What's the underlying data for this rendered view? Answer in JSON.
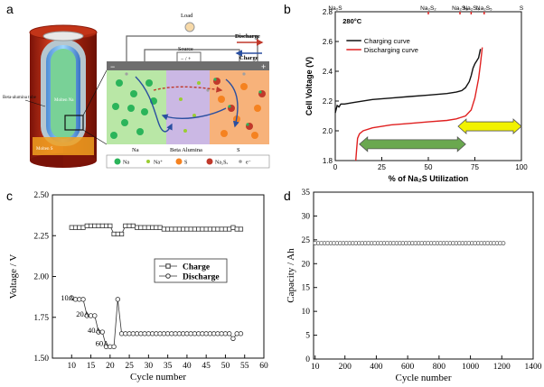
{
  "panel_labels": {
    "a": "a",
    "b": "b",
    "c": "c",
    "d": "d"
  },
  "schematic": {
    "load": "Load",
    "source": "Source",
    "source_sign": "− / +",
    "discharge": "Discharge",
    "charge": "Charge",
    "neg_sign": "−",
    "pos_sign": "+",
    "tube_label": "Beta-alumina tube",
    "molten_na": "Molten Na",
    "molten_s": "Molten S",
    "region_na": "Na",
    "region_beta": "Beta Alumina",
    "region_s": "S",
    "legend": [
      "Na",
      "Na⁺",
      "S",
      "Na₂Sₓ",
      "e⁻"
    ],
    "colors": {
      "na": "#2bb45a",
      "na_ion": "#9acd32",
      "s": "#f58220",
      "na2sx": "#c0392b",
      "electron": "#a0a0a0",
      "na_region": "#b9e7a6",
      "beta_region": "#cbb8e4",
      "s_region": "#f7b27a"
    }
  },
  "chart_data": [
    {
      "id": "b",
      "type": "line",
      "title": "",
      "annotation": "280°C",
      "xlabel": "% of Na₂S Utilization",
      "ylabel": "Cell Voltage (V)",
      "xlim": [
        0,
        100
      ],
      "ylim": [
        1.8,
        2.8
      ],
      "xticks": [
        0,
        25,
        50,
        75,
        100
      ],
      "yticks": [
        1.8,
        2.0,
        2.2,
        2.4,
        2.6,
        2.8
      ],
      "top_labels": [
        {
          "text": "Na₂S",
          "x": 0
        },
        {
          "text": "Na₂S₂",
          "x": 50
        },
        {
          "text": "Na₂S₃",
          "x": 67
        },
        {
          "text": "Na₂S₄",
          "x": 73
        },
        {
          "text": "Na₂S₅",
          "x": 80
        },
        {
          "text": "S",
          "x": 100
        }
      ],
      "series": [
        {
          "name": "Charging curve",
          "color": "#111111",
          "x": [
            0,
            1,
            2,
            3,
            5,
            10,
            20,
            30,
            40,
            50,
            60,
            65,
            68,
            70,
            72,
            73,
            74,
            75,
            76,
            77,
            78
          ],
          "y": [
            2.12,
            2.17,
            2.16,
            2.18,
            2.18,
            2.19,
            2.21,
            2.22,
            2.23,
            2.24,
            2.25,
            2.26,
            2.27,
            2.29,
            2.33,
            2.37,
            2.42,
            2.45,
            2.47,
            2.49,
            2.55
          ]
        },
        {
          "name": "Discharging curve",
          "color": "#e02020",
          "x": [
            11,
            11.5,
            12,
            13,
            15,
            20,
            30,
            40,
            50,
            60,
            65,
            70,
            73,
            75,
            77,
            78,
            79
          ],
          "y": [
            1.8,
            1.88,
            1.95,
            1.98,
            2.0,
            2.02,
            2.04,
            2.05,
            2.06,
            2.07,
            2.08,
            2.1,
            2.14,
            2.22,
            2.35,
            2.45,
            2.56
          ]
        }
      ],
      "arrows": [
        {
          "from": 70,
          "to": 13,
          "y": 1.91,
          "color": "#6aa84f"
        },
        {
          "from": 66,
          "to": 100,
          "y": 2.03,
          "color": "#f2f200"
        }
      ]
    },
    {
      "id": "c",
      "type": "line",
      "xlabel": "Cycle number",
      "ylabel": "Voltage / V",
      "xlim": [
        5,
        60
      ],
      "ylim": [
        1.5,
        2.5
      ],
      "xticks": [
        10,
        15,
        20,
        25,
        30,
        35,
        40,
        45,
        50,
        55,
        60
      ],
      "yticks": [
        1.5,
        1.75,
        2.0,
        2.25,
        2.5
      ],
      "ytick_labels": [
        "1.50",
        "1.75",
        "2.00",
        "2.25",
        "2.50"
      ],
      "annotations": [
        {
          "text": "10A",
          "x": 10,
          "y": 1.87
        },
        {
          "text": "20A",
          "x": 14,
          "y": 1.77
        },
        {
          "text": "40A",
          "x": 17,
          "y": 1.67
        },
        {
          "text": "60A",
          "x": 19,
          "y": 1.59
        }
      ],
      "series": [
        {
          "name": "Charge",
          "marker": "square",
          "x": [
            10,
            11,
            12,
            13,
            14,
            15,
            16,
            17,
            18,
            19,
            20,
            21,
            22,
            23,
            24,
            25,
            26,
            27,
            28,
            29,
            30,
            31,
            32,
            33,
            34,
            35,
            36,
            37,
            38,
            39,
            40,
            41,
            42,
            43,
            44,
            45,
            46,
            47,
            48,
            49,
            50,
            51,
            52,
            53,
            54
          ],
          "y": [
            2.3,
            2.3,
            2.3,
            2.3,
            2.31,
            2.31,
            2.31,
            2.31,
            2.31,
            2.31,
            2.31,
            2.26,
            2.26,
            2.26,
            2.31,
            2.31,
            2.31,
            2.3,
            2.3,
            2.3,
            2.3,
            2.3,
            2.3,
            2.3,
            2.29,
            2.29,
            2.29,
            2.29,
            2.29,
            2.29,
            2.29,
            2.29,
            2.29,
            2.29,
            2.29,
            2.29,
            2.29,
            2.29,
            2.29,
            2.29,
            2.29,
            2.29,
            2.3,
            2.29,
            2.29
          ]
        },
        {
          "name": "Discharge",
          "marker": "circle",
          "x": [
            10,
            11,
            12,
            13,
            14,
            15,
            16,
            17,
            18,
            19,
            20,
            21,
            22,
            23,
            24,
            25,
            26,
            27,
            28,
            29,
            30,
            31,
            32,
            33,
            34,
            35,
            36,
            37,
            38,
            39,
            40,
            41,
            42,
            43,
            44,
            45,
            46,
            47,
            48,
            49,
            50,
            51,
            52,
            53,
            54
          ],
          "y": [
            1.87,
            1.86,
            1.86,
            1.86,
            1.76,
            1.76,
            1.76,
            1.66,
            1.66,
            1.57,
            1.57,
            1.57,
            1.86,
            1.65,
            1.65,
            1.65,
            1.65,
            1.65,
            1.65,
            1.65,
            1.65,
            1.65,
            1.65,
            1.65,
            1.65,
            1.65,
            1.65,
            1.65,
            1.65,
            1.65,
            1.65,
            1.65,
            1.65,
            1.65,
            1.65,
            1.65,
            1.65,
            1.65,
            1.65,
            1.65,
            1.65,
            1.65,
            1.62,
            1.65,
            1.65
          ]
        }
      ],
      "legend": [
        "Charge",
        "Discharge"
      ]
    },
    {
      "id": "d",
      "type": "scatter",
      "xlabel": "Cycle number",
      "ylabel": "Capacity / Ah",
      "xlim": [
        0,
        1400
      ],
      "ylim": [
        0,
        35
      ],
      "xticks": [
        10,
        200,
        400,
        600,
        800,
        1000,
        1200,
        1400
      ],
      "yticks": [
        0,
        5,
        10,
        15,
        20,
        25,
        30,
        35
      ],
      "series": [
        {
          "name": "Capacity",
          "marker": "circle",
          "x_start": 10,
          "x_end": 1210,
          "x_step": 20,
          "y": 24.3
        }
      ]
    }
  ]
}
